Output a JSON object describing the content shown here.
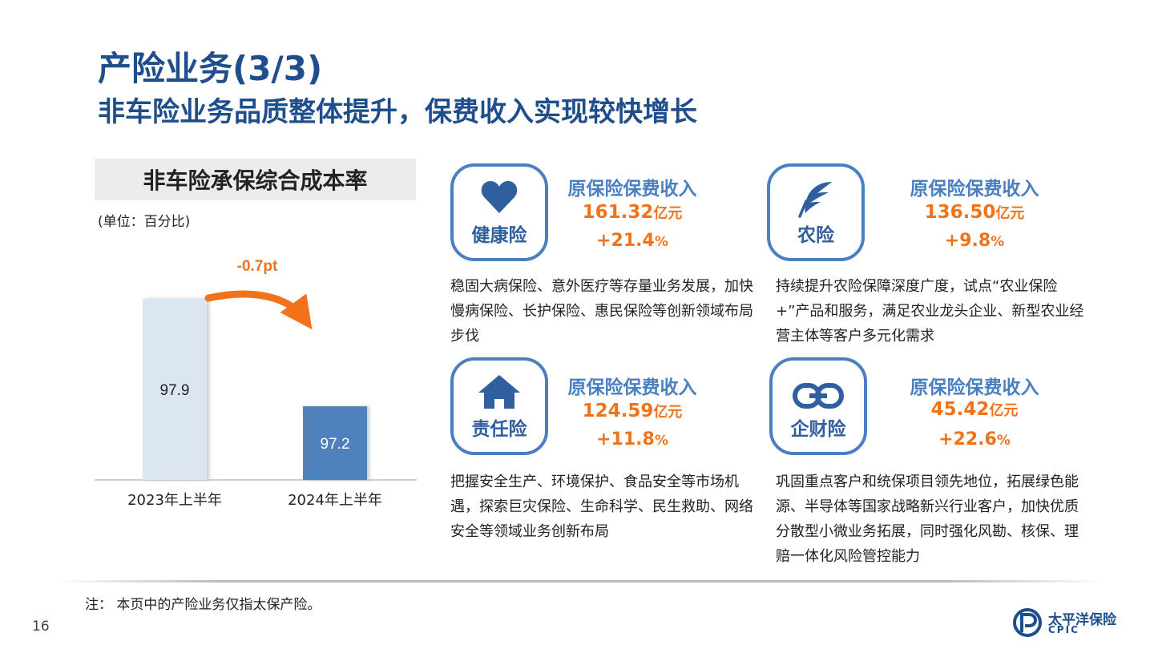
{
  "header": {
    "title": "产险业务(3/3)",
    "subtitle": "非车险业务品质整体提升，保费收入实现较快增长"
  },
  "chart_section": {
    "heading": "非车险承保综合成本率",
    "unit": "(单位：百分比)"
  },
  "chart_data": {
    "type": "bar",
    "categories": [
      "2023年上半年",
      "2024年上半年"
    ],
    "values": [
      97.9,
      97.2
    ],
    "data_labels": [
      "97.9",
      "97.2"
    ],
    "change_annotation": "-0.7pt",
    "bar_colors": [
      "#dce6f2",
      "#4f81bd"
    ],
    "label_colors": [
      "#222222",
      "#ffffff"
    ],
    "arrow_color": "#f0731c"
  },
  "cards": [
    {
      "icon": "heart-icon",
      "name": "健康险",
      "stat_label": "原保险保费收入",
      "value": "161.32",
      "value_unit": "亿元",
      "growth": "+21.4",
      "growth_unit": "%",
      "description": "稳固大病保险、意外医疗等存量业务发展，加快慢病保险、长护保险、惠民保险等创新领域布局步伐"
    },
    {
      "icon": "feather-icon",
      "name": "农险",
      "stat_label": "原保险保费收入",
      "value": "136.50",
      "value_unit": "亿元",
      "growth": "+9.8",
      "growth_unit": "%",
      "description": "持续提升农险保障深度广度，试点“农业保险+”产品和服务，满足农业龙头企业、新型农业经营主体等客户多元化需求"
    },
    {
      "icon": "home-icon",
      "name": "责任险",
      "stat_label": "原保险保费收入",
      "value": "124.59",
      "value_unit": "亿元",
      "growth": "+11.8",
      "growth_unit": "%",
      "description": "把握安全生产、环境保护、食品安全等市场机遇，探索巨灾保险、生命科学、民生救助、网络安全等领域业务创新布局"
    },
    {
      "icon": "link-icon",
      "name": "企财险",
      "stat_label": "原保险保费收入",
      "value": "45.42",
      "value_unit": "亿元",
      "growth": "+22.6",
      "growth_unit": "%",
      "description": "巩固重点客户和统保项目领先地位，拓展绿色能源、半导体等国家战略新兴行业客户，加快优质分散型小微业务拓展，同时强化风勘、核保、理赔一体化风险管控能力"
    }
  ],
  "footer": {
    "note": "注： 本页中的产险业务仅指太保产险。",
    "page_number": "16",
    "logo_name": "太平洋保险",
    "logo_en": "CPIC"
  },
  "colors": {
    "primary": "#1f4e8c",
    "accent": "#f0731c",
    "icon_blue": "#4a7fc1"
  }
}
